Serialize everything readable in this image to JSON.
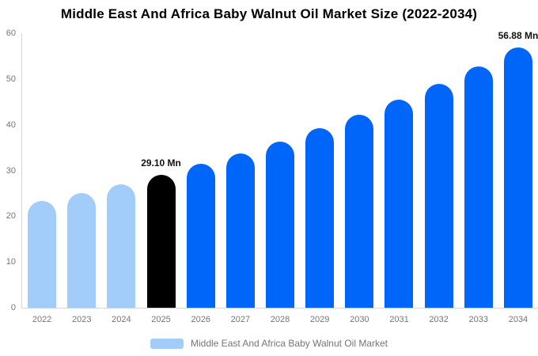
{
  "chart_data": {
    "type": "bar",
    "title": "Middle East And Africa Baby Walnut Oil Market Size (2022-2034)",
    "categories": [
      "2022",
      "2023",
      "2024",
      "2025",
      "2026",
      "2027",
      "2028",
      "2029",
      "2030",
      "2031",
      "2032",
      "2033",
      "2034"
    ],
    "values": [
      23.3,
      25.1,
      27.0,
      29.1,
      31.4,
      33.8,
      36.4,
      39.2,
      42.2,
      45.5,
      49.0,
      52.8,
      56.88
    ],
    "unit": "Mn",
    "xlabel": "",
    "ylabel": "",
    "ylim": [
      0,
      60
    ],
    "yticks": [
      0,
      10,
      20,
      30,
      40,
      50,
      60
    ],
    "grid": false,
    "legend_position": "bottom",
    "bar_colors": [
      "#a2ccfa",
      "#a2ccfa",
      "#a2ccfa",
      "#000000",
      "#0066fa",
      "#0066fa",
      "#0066fa",
      "#0066fa",
      "#0066fa",
      "#0066fa",
      "#0066fa",
      "#0066fa",
      "#0066fa"
    ],
    "data_labels": [
      {
        "category": "2025",
        "text": "29.10 Mn"
      },
      {
        "category": "2034",
        "text": "56.88 Mn"
      }
    ],
    "legend": {
      "label": "Middle East And Africa Baby Walnut Oil Market",
      "swatch_color": "#a2ccfa"
    }
  },
  "colors": {
    "series_light_blue": "#a2ccfa",
    "series_blue": "#0066fa",
    "series_highlight_black": "#000000",
    "axis_line": "#d6d6d6",
    "tick_text": "#757575",
    "value_label_text": "#111111",
    "title_text": "#000000",
    "background": "#ffffff"
  }
}
